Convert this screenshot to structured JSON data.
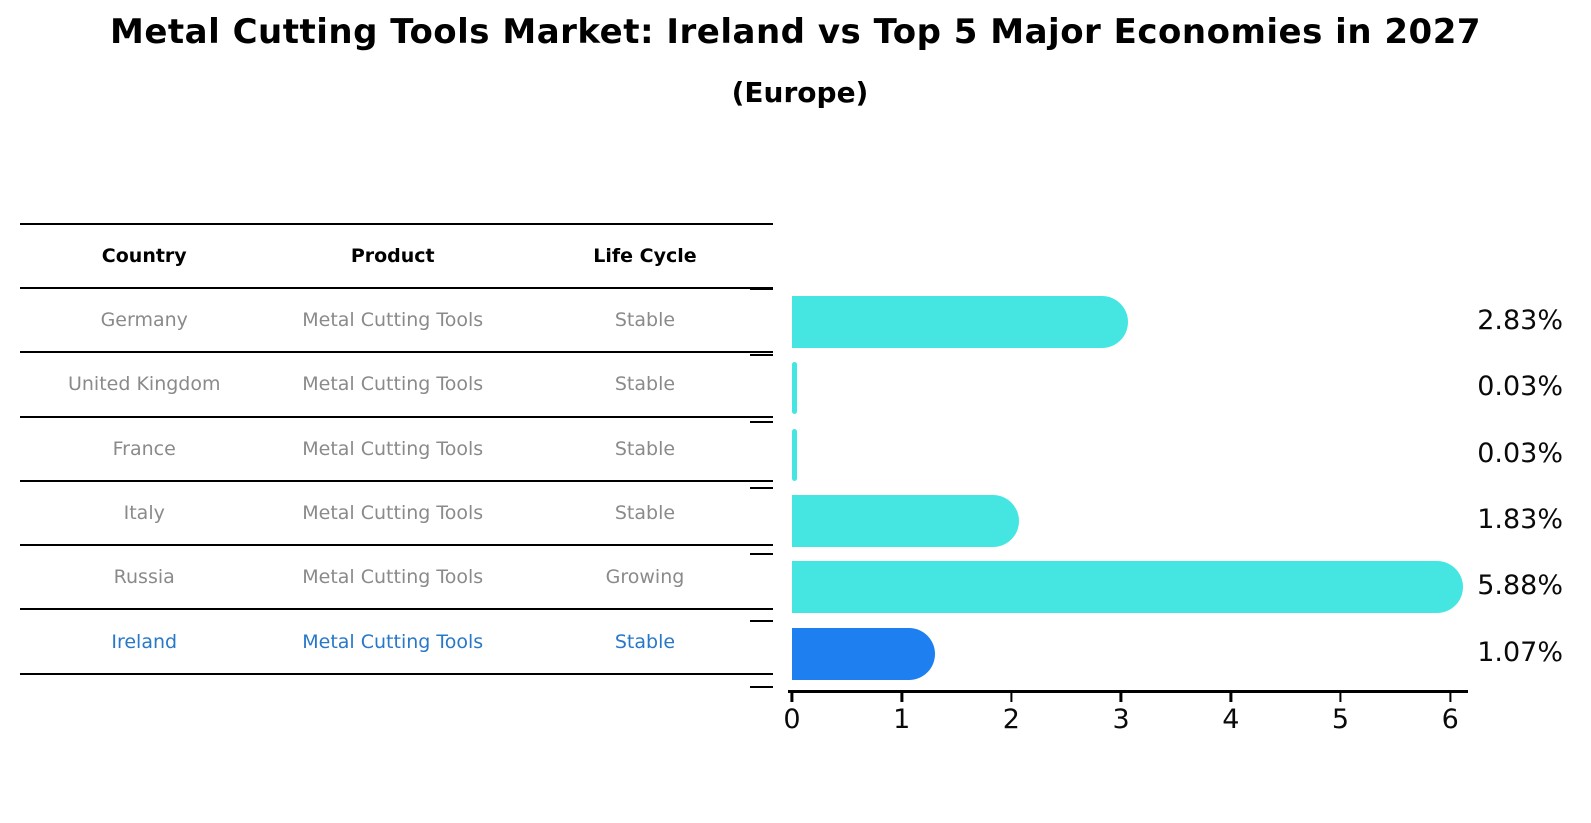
{
  "title": "Metal Cutting Tools Market: Ireland vs Top 5 Major Economies in 2027",
  "subtitle": "(Europe)",
  "table": {
    "headers": [
      "Country",
      "Product",
      "Life Cycle"
    ],
    "rows": [
      {
        "country": "Germany",
        "product": "Metal Cutting Tools",
        "life_cycle": "Stable",
        "highlight": false
      },
      {
        "country": "United Kingdom",
        "product": "Metal Cutting Tools",
        "life_cycle": "Stable",
        "highlight": false
      },
      {
        "country": "France",
        "product": "Metal Cutting Tools",
        "life_cycle": "Stable",
        "highlight": false
      },
      {
        "country": "Italy",
        "product": "Metal Cutting Tools",
        "life_cycle": "Stable",
        "highlight": false
      },
      {
        "country": "Russia",
        "product": "Metal Cutting Tools",
        "life_cycle": "Growing",
        "highlight": false
      },
      {
        "country": "Ireland",
        "product": "Metal Cutting Tools",
        "life_cycle": "Stable",
        "highlight": true
      }
    ]
  },
  "chart_data": {
    "type": "bar",
    "orientation": "horizontal",
    "title": "Metal Cutting Tools Market: Ireland vs Top 5 Major Economies in 2027",
    "subtitle": "(Europe)",
    "categories": [
      "Germany",
      "United Kingdom",
      "France",
      "Italy",
      "Russia",
      "Ireland"
    ],
    "values": [
      2.83,
      0.03,
      0.03,
      1.83,
      5.88,
      1.07
    ],
    "value_labels": [
      "2.83%",
      "0.03%",
      "0.03%",
      "1.83%",
      "5.88%",
      "1.07%"
    ],
    "xticks": [
      "0",
      "1",
      "2",
      "3",
      "4",
      "5",
      "6"
    ],
    "xlim": [
      0,
      6
    ],
    "grid": false,
    "bar_color": "#45e6e1",
    "highlight_index": 5,
    "highlight_bar_color": "#1e80f0",
    "highlight_text_color": "#2878c8"
  }
}
